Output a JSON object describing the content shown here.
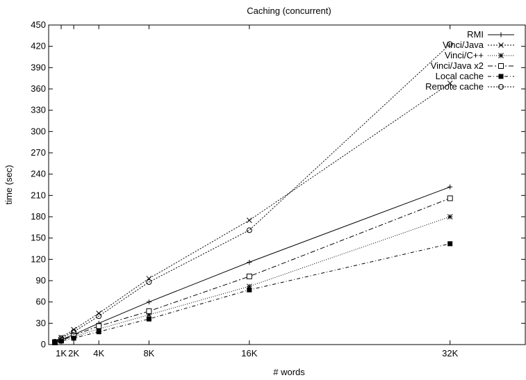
{
  "chart_data": {
    "type": "line",
    "title": "Caching (concurrent)",
    "xlabel": "# words",
    "ylabel": "time (sec)",
    "xlim": [
      0,
      38
    ],
    "ylim": [
      0,
      450
    ],
    "x_ticks": [
      1,
      2,
      4,
      8,
      16,
      32
    ],
    "x_tick_labels": [
      "1K",
      "2K",
      "4K",
      "8K",
      "16K",
      "32K"
    ],
    "y_ticks": [
      0,
      30,
      60,
      90,
      120,
      150,
      180,
      210,
      240,
      270,
      300,
      330,
      360,
      390,
      420,
      450
    ],
    "legend_position": "top-right",
    "grid": false,
    "x": [
      0.5,
      1,
      2,
      4,
      8,
      16,
      32
    ],
    "series": [
      {
        "name": "RMI",
        "marker": "plus",
        "dash": "solid",
        "values": [
          3,
          7,
          14,
          30,
          60,
          116,
          222
        ]
      },
      {
        "name": "Vinci/Java",
        "marker": "cross",
        "dash": "dotted",
        "values": [
          4,
          10,
          21,
          44,
          93,
          175,
          368
        ]
      },
      {
        "name": "Vinci/C++",
        "marker": "star",
        "dash": "dotted-fine",
        "values": [
          3,
          6,
          11,
          22,
          42,
          82,
          180
        ]
      },
      {
        "name": "Vinci/Java x2",
        "marker": "open-square",
        "dash": "dashdot",
        "values": [
          3,
          6,
          13,
          26,
          47,
          96,
          206
        ]
      },
      {
        "name": "Local cache",
        "marker": "filled-square",
        "dash": "dashdot-short",
        "values": [
          3,
          5,
          9,
          18,
          36,
          77,
          142
        ]
      },
      {
        "name": "Remote cache",
        "marker": "open-circle",
        "dash": "dotted",
        "values": [
          4,
          9,
          18,
          40,
          88,
          161,
          423
        ]
      }
    ]
  }
}
